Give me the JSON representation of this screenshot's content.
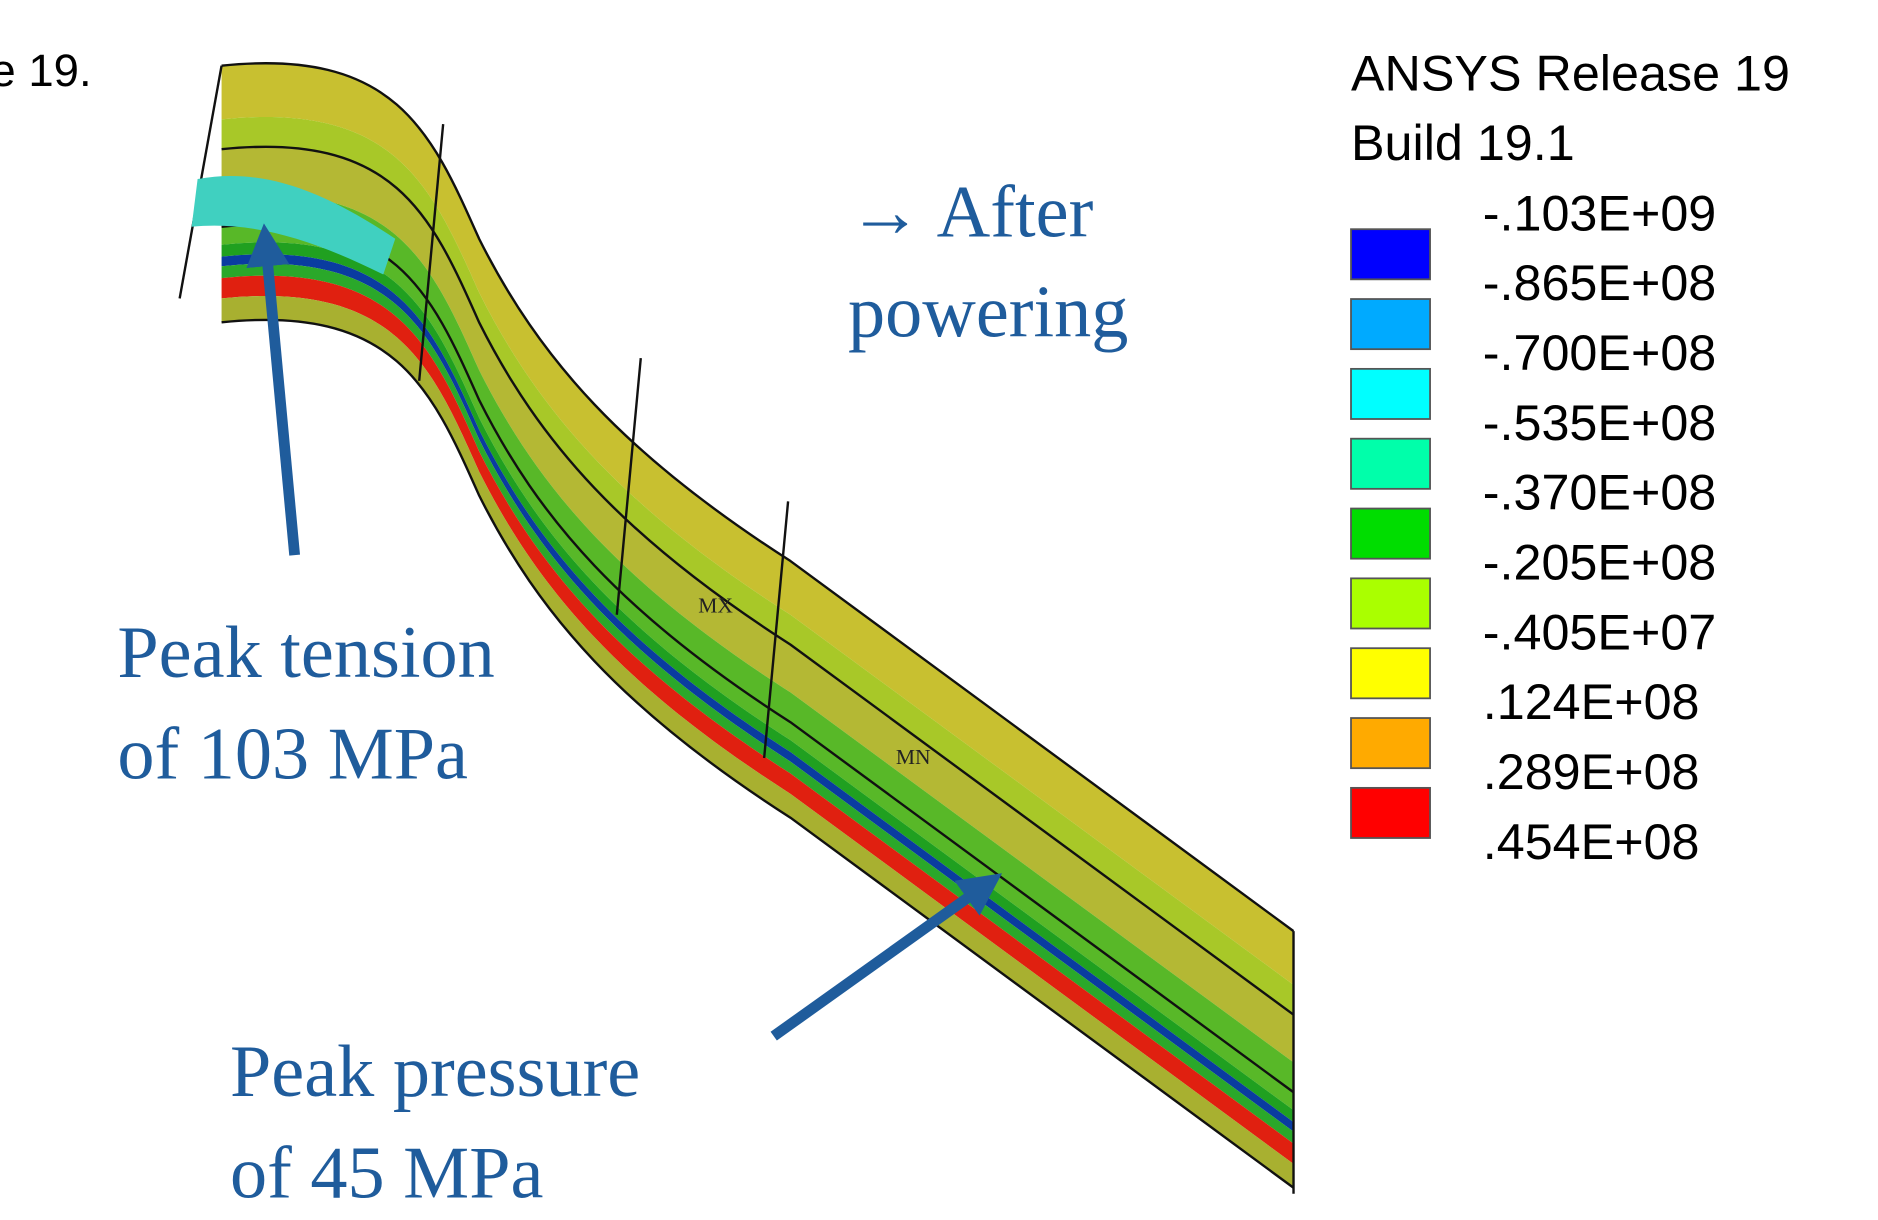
{
  "header": {
    "cropped_title": "e 19."
  },
  "legend": {
    "title_lines": [
      "ANSYS Release 19",
      "Build 19.1"
    ],
    "labels": [
      "-.103E+09",
      "-.865E+08",
      "-.700E+08",
      "-.535E+08",
      "-.370E+08",
      "-.205E+08",
      "-.405E+07",
      ".124E+08",
      ".289E+08",
      ".454E+08"
    ],
    "colors": [
      "#0000ff",
      "#00aaff",
      "#00ffff",
      "#00ffaa",
      "#00dd00",
      "#aaff00",
      "#ffff00",
      "#ffaa00",
      "#ff0000"
    ]
  },
  "model_labels": {
    "max": "MX",
    "min": "MN"
  },
  "annotations": {
    "after": [
      "→ After",
      "powering"
    ],
    "tension": [
      "Peak tension",
      "of 103 MPa"
    ],
    "pressure": [
      "Peak pressure",
      "of 45 MPa"
    ]
  }
}
